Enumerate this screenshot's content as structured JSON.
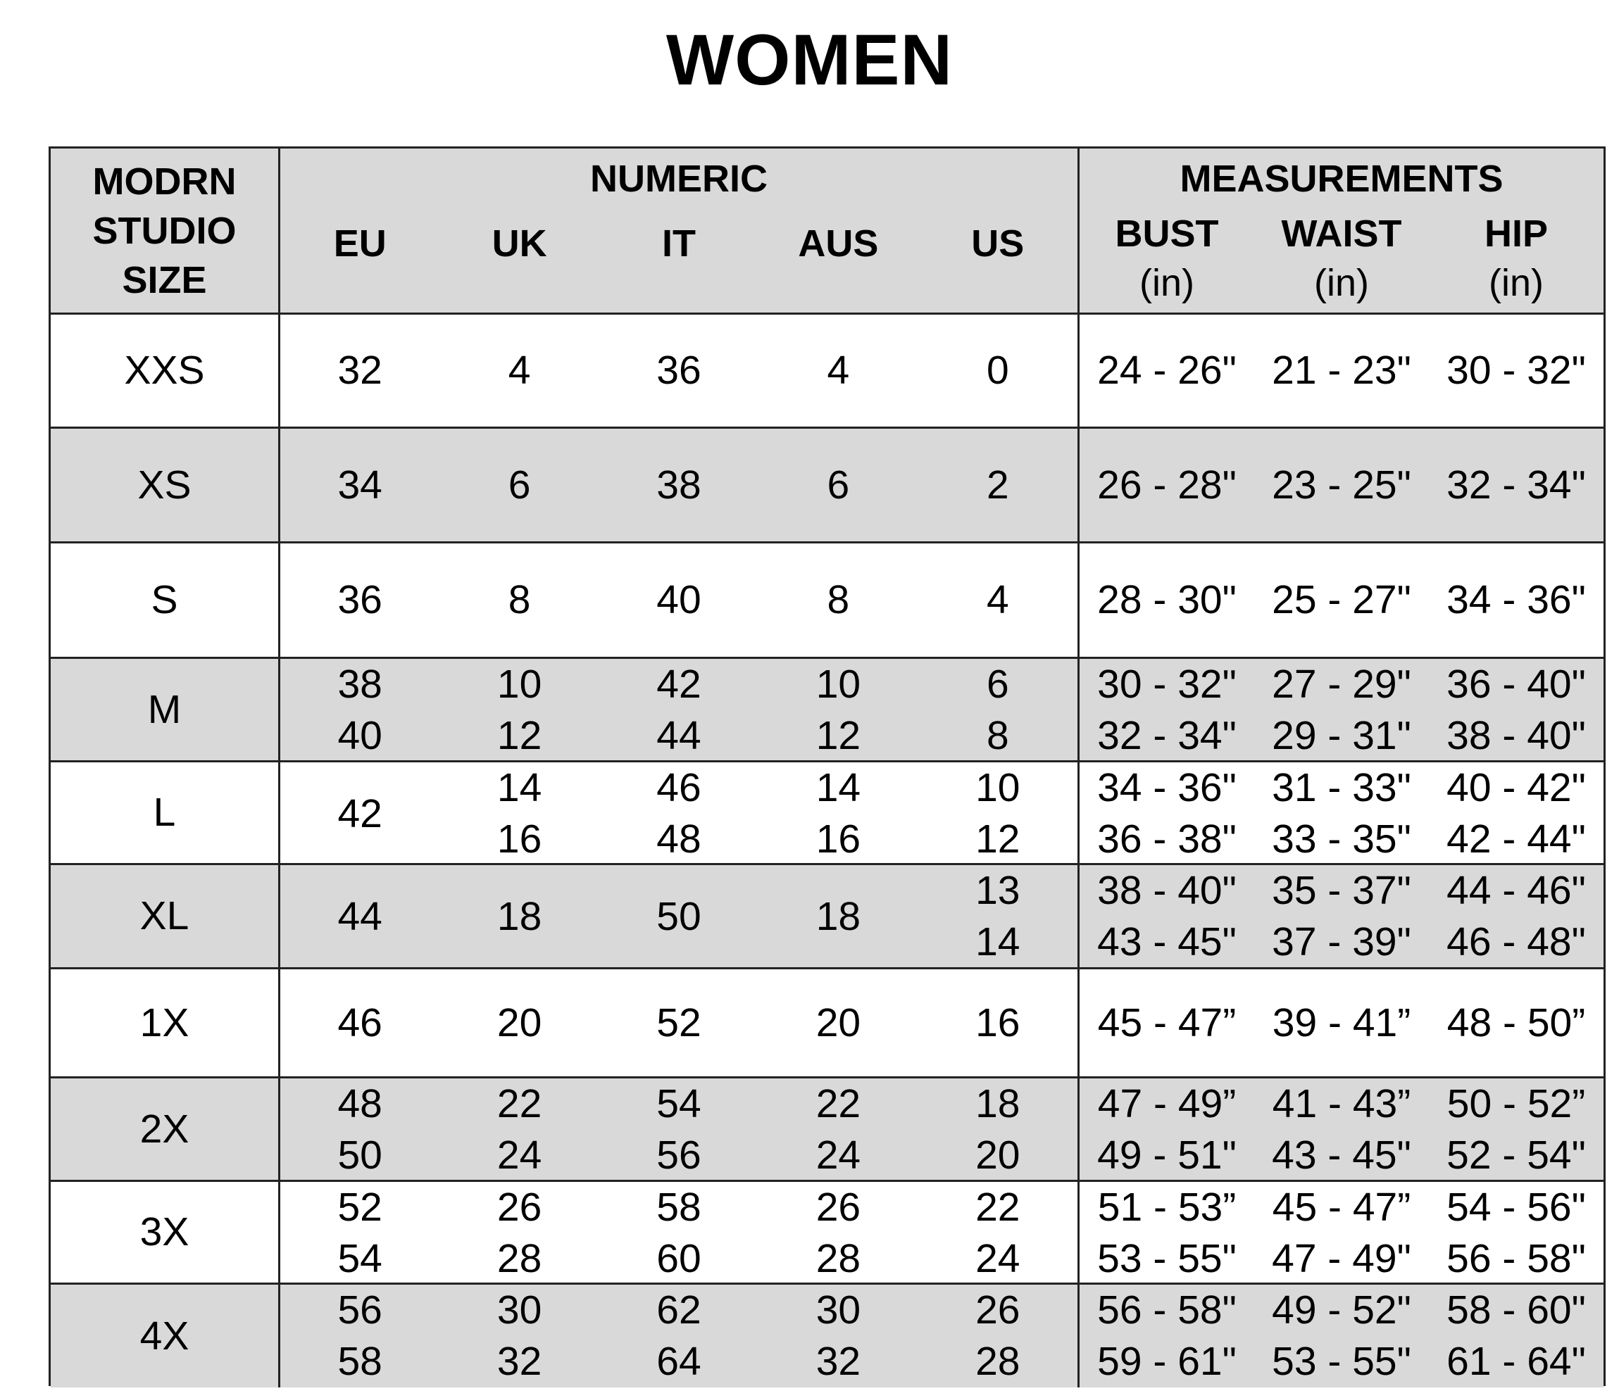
{
  "title": "WOMEN",
  "header": {
    "size_col": [
      "MODRN",
      "STUDIO",
      "SIZE"
    ],
    "numeric_group": "NUMERIC",
    "numeric_cols": [
      "EU",
      "UK",
      "IT",
      "AUS",
      "US"
    ],
    "measurements_group": "MEASUREMENTS",
    "measurement_cols": [
      {
        "label": "BUST",
        "unit": "(in)"
      },
      {
        "label": "WAIST",
        "unit": "(in)"
      },
      {
        "label": "HIP",
        "unit": "(in)"
      }
    ]
  },
  "colors": {
    "header_bg": "#d9d9d9",
    "alt_row_bg": "#d9d9d9",
    "border": "#222222"
  },
  "rows": [
    {
      "size": "XXS",
      "shaded": false,
      "eu": [
        "32"
      ],
      "uk": [
        "4"
      ],
      "it": [
        "36"
      ],
      "aus": [
        "4"
      ],
      "us": [
        "0"
      ],
      "bust": [
        "24 - 26\""
      ],
      "waist": [
        "21 - 23\""
      ],
      "hip": [
        "30 - 32\""
      ]
    },
    {
      "size": "XS",
      "shaded": true,
      "eu": [
        "34"
      ],
      "uk": [
        "6"
      ],
      "it": [
        "38"
      ],
      "aus": [
        "6"
      ],
      "us": [
        "2"
      ],
      "bust": [
        "26 - 28\""
      ],
      "waist": [
        "23 - 25\""
      ],
      "hip": [
        "32 - 34\""
      ]
    },
    {
      "size": "S",
      "shaded": false,
      "eu": [
        "36"
      ],
      "uk": [
        "8"
      ],
      "it": [
        "40"
      ],
      "aus": [
        "8"
      ],
      "us": [
        "4"
      ],
      "bust": [
        "28 - 30\""
      ],
      "waist": [
        "25 - 27\""
      ],
      "hip": [
        "34 - 36\""
      ]
    },
    {
      "size": "M",
      "shaded": true,
      "eu": [
        "38",
        "40"
      ],
      "uk": [
        "10",
        "12"
      ],
      "it": [
        "42",
        "44"
      ],
      "aus": [
        "10",
        "12"
      ],
      "us": [
        "6",
        "8"
      ],
      "bust": [
        "30 - 32\"",
        "32 - 34\""
      ],
      "waist": [
        "27 - 29\"",
        "29 - 31\""
      ],
      "hip": [
        "36 - 40\"",
        "38 - 40\""
      ]
    },
    {
      "size": "L",
      "shaded": false,
      "eu": [
        "42"
      ],
      "uk": [
        "14",
        "16"
      ],
      "it": [
        "46",
        "48"
      ],
      "aus": [
        "14",
        "16"
      ],
      "us": [
        "10",
        "12"
      ],
      "bust": [
        "34 - 36\"",
        "36 - 38\""
      ],
      "waist": [
        "31 - 33\"",
        "33 - 35\""
      ],
      "hip": [
        "40 - 42\"",
        "42 - 44\""
      ]
    },
    {
      "size": "XL",
      "shaded": true,
      "eu": [
        "44"
      ],
      "uk": [
        "18"
      ],
      "it": [
        "50"
      ],
      "aus": [
        "18"
      ],
      "us": [
        "13",
        "14"
      ],
      "bust": [
        "38 - 40\"",
        "43 - 45\""
      ],
      "waist": [
        "35 - 37\"",
        "37 - 39\""
      ],
      "hip": [
        "44 - 46\"",
        "46 - 48\""
      ]
    },
    {
      "size": "1X",
      "shaded": false,
      "eu": [
        "46"
      ],
      "uk": [
        "20"
      ],
      "it": [
        "52"
      ],
      "aus": [
        "20"
      ],
      "us": [
        "16"
      ],
      "bust": [
        "45 - 47”"
      ],
      "waist": [
        "39 - 41”"
      ],
      "hip": [
        "48 - 50”"
      ]
    },
    {
      "size": "2X",
      "shaded": true,
      "eu": [
        "48",
        "50"
      ],
      "uk": [
        "22",
        "24"
      ],
      "it": [
        "54",
        "56"
      ],
      "aus": [
        "22",
        "24"
      ],
      "us": [
        "18",
        "20"
      ],
      "bust": [
        "47 - 49”",
        "49 - 51\""
      ],
      "waist": [
        "41 - 43”",
        "43 - 45\""
      ],
      "hip": [
        "50 - 52”",
        "52 - 54\""
      ]
    },
    {
      "size": "3X",
      "shaded": false,
      "eu": [
        "52",
        "54"
      ],
      "uk": [
        "26",
        "28"
      ],
      "it": [
        "58",
        "60"
      ],
      "aus": [
        "26",
        "28"
      ],
      "us": [
        "22",
        "24"
      ],
      "bust": [
        "51 - 53”",
        "53 - 55\""
      ],
      "waist": [
        "45 - 47”",
        "47 - 49\""
      ],
      "hip": [
        "54 - 56\"",
        "56 - 58\""
      ]
    },
    {
      "size": "4X",
      "shaded": true,
      "eu": [
        "56",
        "58"
      ],
      "uk": [
        "30",
        "32"
      ],
      "it": [
        "62",
        "64"
      ],
      "aus": [
        "30",
        "32"
      ],
      "us": [
        "26",
        "28"
      ],
      "bust": [
        "56 - 58\"",
        "59 - 61\""
      ],
      "waist": [
        "49 - 52\"",
        "53 - 55\""
      ],
      "hip": [
        "58 - 60\"",
        "61 - 64\""
      ]
    }
  ]
}
